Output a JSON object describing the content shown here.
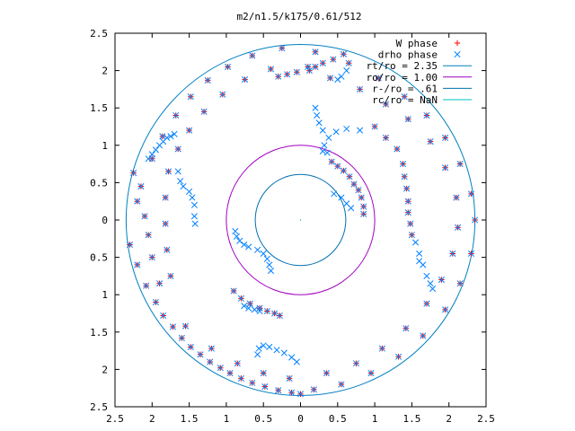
{
  "chart_data": {
    "type": "scatter",
    "title": "m2/n1.5/k175/0.61/512",
    "xlabel": "",
    "ylabel": "",
    "xlim": [
      -2.5,
      2.5
    ],
    "ylim": [
      -2.5,
      2.5
    ],
    "x_tick_labels": [
      "2.5",
      "2",
      "1.5",
      "1",
      "0.5",
      "0",
      "0.5",
      "1",
      "1.5",
      "2",
      "2.5"
    ],
    "y_tick_labels": [
      "2.5",
      "2",
      "1.5",
      "1",
      "0.5",
      "0",
      "0.5",
      "1",
      "1.5",
      "2",
      "2.5"
    ],
    "grid": false,
    "legend_position": "top-right",
    "colors": {
      "w_phase": "#ff0000",
      "drho_phase": "#0080ff",
      "rt_ro": "#0080c0",
      "ro_ro": "#a000c0",
      "rminus_ro": "#0070b0",
      "rc_ro": "#00c0c0"
    },
    "circles": [
      {
        "name": "rt/ro = 2.35",
        "radius": 2.35,
        "color": "#0080c0"
      },
      {
        "name": "ro/ro = 1.00",
        "radius": 1.0,
        "color": "#a000c0"
      },
      {
        "name": "r-/ro = .61",
        "radius": 0.61,
        "color": "#0070b0"
      },
      {
        "name": "rc/ro = NaN",
        "radius": null,
        "color": "#00c0c0"
      }
    ],
    "series": [
      {
        "name": "W phase",
        "marker": "+",
        "color": "#ff0000",
        "points": [
          [
            -2.25,
            0.63
          ],
          [
            -2.2,
            0.25
          ],
          [
            -2.3,
            -0.33
          ],
          [
            -2.2,
            -0.6
          ],
          [
            -2.08,
            -0.88
          ],
          [
            -1.95,
            -1.1
          ],
          [
            -1.85,
            -1.28
          ],
          [
            -1.72,
            -1.43
          ],
          [
            -1.6,
            -1.58
          ],
          [
            -1.48,
            -1.7
          ],
          [
            -1.35,
            -1.8
          ],
          [
            -1.22,
            -1.9
          ],
          [
            -1.08,
            -1.98
          ],
          [
            -0.95,
            -2.05
          ],
          [
            -0.8,
            -2.12
          ],
          [
            -0.65,
            -2.18
          ],
          [
            -0.48,
            -2.23
          ],
          [
            -0.3,
            -2.28
          ],
          [
            -0.12,
            -2.31
          ],
          [
            0.0,
            -2.33
          ],
          [
            0.18,
            -2.27
          ],
          [
            0.55,
            -2.2
          ],
          [
            0.95,
            -2.05
          ],
          [
            1.32,
            -1.83
          ],
          [
            1.65,
            -1.55
          ],
          [
            1.95,
            -1.2
          ],
          [
            2.15,
            -0.85
          ],
          [
            2.3,
            -0.45
          ],
          [
            2.35,
            0.0
          ],
          [
            2.3,
            0.35
          ],
          [
            2.15,
            0.75
          ],
          [
            1.95,
            1.1
          ],
          [
            1.7,
            1.4
          ],
          [
            1.4,
            1.65
          ],
          [
            1.05,
            1.9
          ],
          [
            0.65,
            2.1
          ],
          [
            0.2,
            2.25
          ],
          [
            -0.25,
            2.3
          ],
          [
            -0.65,
            2.2
          ],
          [
            -0.98,
            2.05
          ],
          [
            -1.25,
            1.87
          ],
          [
            -1.48,
            1.65
          ],
          [
            -1.68,
            1.4
          ],
          [
            -1.86,
            1.12
          ],
          [
            -2.0,
            0.82
          ],
          [
            -2.15,
            0.45
          ],
          [
            -2.1,
            0.05
          ],
          [
            -2.05,
            -0.2
          ],
          [
            -2.0,
            -0.5
          ],
          [
            -1.9,
            -0.85
          ],
          [
            -1.55,
            -1.42
          ],
          [
            -1.2,
            -1.72
          ],
          [
            -0.85,
            -1.92
          ],
          [
            -0.5,
            -2.05
          ],
          [
            -0.15,
            -2.12
          ],
          [
            0.35,
            -2.05
          ],
          [
            0.75,
            -1.92
          ],
          [
            1.1,
            -1.72
          ],
          [
            1.42,
            -1.45
          ],
          [
            1.7,
            -1.12
          ],
          [
            1.9,
            -0.8
          ],
          [
            2.05,
            -0.45
          ],
          [
            2.12,
            -0.1
          ],
          [
            2.1,
            0.3
          ],
          [
            1.95,
            0.7
          ],
          [
            1.75,
            1.05
          ],
          [
            1.45,
            1.35
          ],
          [
            1.15,
            1.55
          ],
          [
            0.8,
            1.75
          ],
          [
            0.4,
            1.9
          ],
          [
            0.1,
            2.05
          ],
          [
            -0.4,
            2.02
          ],
          [
            -0.75,
            1.88
          ],
          [
            -1.05,
            1.68
          ],
          [
            -1.3,
            1.45
          ],
          [
            -1.5,
            1.2
          ],
          [
            -1.65,
            0.95
          ],
          [
            -1.78,
            0.65
          ],
          [
            -1.82,
            0.3
          ],
          [
            -1.82,
            -0.05
          ],
          [
            -1.8,
            -0.4
          ],
          [
            -1.75,
            -0.75
          ],
          [
            -0.9,
            -0.95
          ],
          [
            -0.8,
            -1.05
          ],
          [
            -0.68,
            -1.12
          ],
          [
            -0.55,
            -1.18
          ],
          [
            -0.45,
            -1.22
          ],
          [
            -0.35,
            -1.25
          ],
          [
            -0.28,
            -1.28
          ],
          [
            0.42,
            0.78
          ],
          [
            0.5,
            0.72
          ],
          [
            0.58,
            0.66
          ],
          [
            0.66,
            0.58
          ],
          [
            0.72,
            0.48
          ],
          [
            0.78,
            0.4
          ],
          [
            0.82,
            0.3
          ],
          [
            0.85,
            0.18
          ],
          [
            0.85,
            0.08
          ],
          [
            0.58,
            2.22
          ],
          [
            0.44,
            2.15
          ],
          [
            0.3,
            2.1
          ],
          [
            0.2,
            2.05
          ],
          [
            0.12,
            2.0
          ],
          [
            -0.05,
            1.98
          ],
          [
            -0.18,
            1.95
          ],
          [
            -0.3,
            1.92
          ],
          [
            1.5,
            -0.2
          ],
          [
            1.48,
            -0.05
          ],
          [
            1.45,
            0.1
          ],
          [
            1.45,
            0.25
          ],
          [
            1.43,
            0.42
          ],
          [
            1.4,
            0.58
          ],
          [
            1.38,
            0.75
          ],
          [
            1.3,
            0.95
          ],
          [
            1.15,
            1.1
          ],
          [
            1.0,
            1.25
          ]
        ]
      },
      {
        "name": "drho phase",
        "marker": "x",
        "color": "#0080ff",
        "points": [
          [
            -2.25,
            0.63
          ],
          [
            -2.2,
            0.25
          ],
          [
            -2.3,
            -0.33
          ],
          [
            -2.2,
            -0.6
          ],
          [
            -2.08,
            -0.88
          ],
          [
            -1.95,
            -1.1
          ],
          [
            -1.85,
            -1.28
          ],
          [
            -1.72,
            -1.43
          ],
          [
            -1.6,
            -1.58
          ],
          [
            -1.48,
            -1.7
          ],
          [
            -1.35,
            -1.8
          ],
          [
            -1.22,
            -1.9
          ],
          [
            -1.08,
            -1.98
          ],
          [
            -0.95,
            -2.05
          ],
          [
            -0.8,
            -2.12
          ],
          [
            -0.65,
            -2.18
          ],
          [
            -0.48,
            -2.23
          ],
          [
            -0.3,
            -2.28
          ],
          [
            -0.12,
            -2.31
          ],
          [
            0.0,
            -2.33
          ],
          [
            0.18,
            -2.27
          ],
          [
            0.55,
            -2.2
          ],
          [
            0.95,
            -2.05
          ],
          [
            1.32,
            -1.83
          ],
          [
            1.65,
            -1.55
          ],
          [
            1.95,
            -1.2
          ],
          [
            2.15,
            -0.85
          ],
          [
            2.3,
            -0.45
          ],
          [
            2.35,
            0.0
          ],
          [
            2.3,
            0.35
          ],
          [
            2.15,
            0.75
          ],
          [
            1.95,
            1.1
          ],
          [
            1.7,
            1.4
          ],
          [
            1.4,
            1.65
          ],
          [
            1.05,
            1.9
          ],
          [
            0.65,
            2.1
          ],
          [
            0.2,
            2.25
          ],
          [
            -0.25,
            2.3
          ],
          [
            -0.65,
            2.2
          ],
          [
            -0.98,
            2.05
          ],
          [
            -1.25,
            1.87
          ],
          [
            -1.48,
            1.65
          ],
          [
            -1.68,
            1.4
          ],
          [
            -1.86,
            1.12
          ],
          [
            -2.0,
            0.82
          ],
          [
            -2.15,
            0.45
          ],
          [
            -2.1,
            0.05
          ],
          [
            -2.05,
            -0.2
          ],
          [
            -2.0,
            -0.5
          ],
          [
            -1.9,
            -0.85
          ],
          [
            -1.55,
            -1.42
          ],
          [
            -1.2,
            -1.72
          ],
          [
            -0.85,
            -1.92
          ],
          [
            -0.5,
            -2.05
          ],
          [
            -0.15,
            -2.12
          ],
          [
            0.35,
            -2.05
          ],
          [
            0.75,
            -1.92
          ],
          [
            1.1,
            -1.72
          ],
          [
            1.42,
            -1.45
          ],
          [
            1.7,
            -1.12
          ],
          [
            1.9,
            -0.8
          ],
          [
            2.05,
            -0.45
          ],
          [
            2.12,
            -0.1
          ],
          [
            2.1,
            0.3
          ],
          [
            1.95,
            0.7
          ],
          [
            1.75,
            1.05
          ],
          [
            1.45,
            1.35
          ],
          [
            1.15,
            1.55
          ],
          [
            0.8,
            1.75
          ],
          [
            0.4,
            1.9
          ],
          [
            0.1,
            2.05
          ],
          [
            -0.4,
            2.02
          ],
          [
            -0.75,
            1.88
          ],
          [
            -1.05,
            1.68
          ],
          [
            -1.3,
            1.45
          ],
          [
            -1.5,
            1.2
          ],
          [
            -1.65,
            0.95
          ],
          [
            -1.78,
            0.65
          ],
          [
            -1.82,
            0.3
          ],
          [
            -1.82,
            -0.05
          ],
          [
            -1.8,
            -0.4
          ],
          [
            -1.75,
            -0.75
          ],
          [
            -0.9,
            -0.95
          ],
          [
            -0.8,
            -1.05
          ],
          [
            -0.68,
            -1.12
          ],
          [
            -0.55,
            -1.18
          ],
          [
            -0.45,
            -1.22
          ],
          [
            -0.35,
            -1.25
          ],
          [
            -0.28,
            -1.28
          ],
          [
            0.42,
            0.78
          ],
          [
            0.5,
            0.72
          ],
          [
            0.58,
            0.66
          ],
          [
            0.66,
            0.58
          ],
          [
            0.72,
            0.48
          ],
          [
            0.78,
            0.4
          ],
          [
            0.82,
            0.3
          ],
          [
            0.85,
            0.18
          ],
          [
            0.85,
            0.08
          ],
          [
            0.58,
            2.22
          ],
          [
            0.44,
            2.15
          ],
          [
            0.3,
            2.1
          ],
          [
            0.2,
            2.05
          ],
          [
            0.12,
            2.0
          ],
          [
            -0.05,
            1.98
          ],
          [
            -0.18,
            1.95
          ],
          [
            -0.3,
            1.92
          ],
          [
            1.5,
            -0.2
          ],
          [
            1.48,
            -0.05
          ],
          [
            1.45,
            0.1
          ],
          [
            1.45,
            0.25
          ],
          [
            1.43,
            0.42
          ],
          [
            1.4,
            0.58
          ],
          [
            1.38,
            0.75
          ],
          [
            1.3,
            0.95
          ],
          [
            1.15,
            1.1
          ],
          [
            1.0,
            1.25
          ],
          [
            -2.05,
            0.82
          ],
          [
            -2.0,
            0.88
          ],
          [
            -1.95,
            0.94
          ],
          [
            -1.9,
            1.0
          ],
          [
            -1.85,
            1.05
          ],
          [
            -1.8,
            1.1
          ],
          [
            -1.75,
            1.12
          ],
          [
            -1.7,
            1.15
          ],
          [
            0.8,
            1.2
          ],
          [
            0.62,
            1.22
          ],
          [
            0.48,
            1.18
          ],
          [
            0.38,
            1.1
          ],
          [
            0.32,
            1.0
          ],
          [
            0.3,
            0.92
          ],
          [
            0.36,
            0.9
          ],
          [
            -1.65,
            0.65
          ],
          [
            -1.62,
            0.52
          ],
          [
            -1.58,
            0.45
          ],
          [
            -1.5,
            0.38
          ],
          [
            -1.46,
            0.3
          ],
          [
            -1.43,
            0.2
          ],
          [
            -1.43,
            0.05
          ],
          [
            -1.42,
            -0.05
          ],
          [
            -0.88,
            -0.15
          ],
          [
            -0.86,
            -0.22
          ],
          [
            -0.82,
            -0.28
          ],
          [
            -0.76,
            -0.33
          ],
          [
            -0.7,
            -0.36
          ],
          [
            -0.58,
            -0.4
          ],
          [
            -0.5,
            -0.45
          ],
          [
            -0.45,
            -0.52
          ],
          [
            -0.42,
            -0.6
          ],
          [
            -0.4,
            -0.68
          ],
          [
            -0.55,
            -1.22
          ],
          [
            -0.62,
            -1.2
          ],
          [
            -0.7,
            -1.18
          ],
          [
            -0.76,
            -1.15
          ],
          [
            -0.58,
            -1.8
          ],
          [
            -0.56,
            -1.72
          ],
          [
            -0.5,
            -1.68
          ],
          [
            -0.42,
            -1.7
          ],
          [
            -0.32,
            -1.74
          ],
          [
            -0.22,
            -1.78
          ],
          [
            -0.12,
            -1.84
          ],
          [
            -0.05,
            -1.9
          ],
          [
            0.2,
            1.5
          ],
          [
            0.22,
            1.4
          ],
          [
            0.25,
            1.3
          ],
          [
            0.3,
            1.2
          ],
          [
            0.62,
            2.0
          ],
          [
            0.55,
            1.92
          ],
          [
            0.5,
            1.88
          ],
          [
            0.45,
            0.35
          ],
          [
            0.55,
            0.3
          ],
          [
            0.62,
            0.22
          ],
          [
            0.68,
            0.16
          ],
          [
            1.55,
            -0.3
          ],
          [
            1.6,
            -0.45
          ],
          [
            1.65,
            -0.6
          ],
          [
            1.7,
            -0.75
          ],
          [
            1.75,
            -0.85
          ],
          [
            1.78,
            -0.92
          ],
          [
            1.6,
            -0.55
          ]
        ]
      }
    ]
  }
}
